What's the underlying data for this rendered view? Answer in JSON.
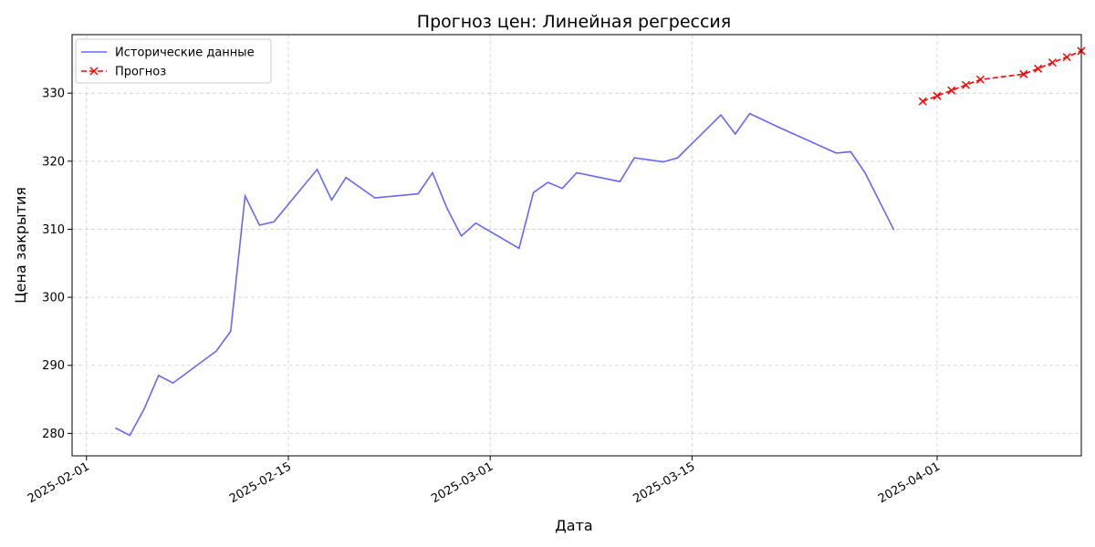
{
  "chart_data": {
    "type": "line",
    "title": "Прогноз цен: Линейная регрессия",
    "xlabel": "Дата",
    "ylabel": "Цена закрытия",
    "xlim": [
      "2025-01-31",
      "2025-04-11"
    ],
    "ylim": [
      276.7,
      338.6
    ],
    "x_ticks": [
      "2025-02-01",
      "2025-02-15",
      "2025-03-01",
      "2025-03-15",
      "2025-04-01"
    ],
    "y_ticks": [
      280,
      290,
      300,
      310,
      320,
      330
    ],
    "grid": true,
    "legend_position": "top-left",
    "series": [
      {
        "name": "Исторические данные",
        "color": "#6666ff",
        "style": "solid",
        "marker": "none",
        "points": [
          [
            "2025-02-03",
            280.8
          ],
          [
            "2025-02-04",
            279.7
          ],
          [
            "2025-02-05",
            283.6
          ],
          [
            "2025-02-06",
            288.5
          ],
          [
            "2025-02-07",
            287.4
          ],
          [
            "2025-02-10",
            292.1
          ],
          [
            "2025-02-11",
            295.0
          ],
          [
            "2025-02-12",
            314.9
          ],
          [
            "2025-02-13",
            310.6
          ],
          [
            "2025-02-14",
            311.1
          ],
          [
            "2025-02-17",
            318.8
          ],
          [
            "2025-02-18",
            314.3
          ],
          [
            "2025-02-19",
            317.6
          ],
          [
            "2025-02-21",
            314.6
          ],
          [
            "2025-02-24",
            315.2
          ],
          [
            "2025-02-25",
            318.3
          ],
          [
            "2025-02-26",
            313.1
          ],
          [
            "2025-02-27",
            309.0
          ],
          [
            "2025-02-28",
            310.9
          ],
          [
            "2025-03-03",
            307.2
          ],
          [
            "2025-03-04",
            315.4
          ],
          [
            "2025-03-05",
            316.9
          ],
          [
            "2025-03-06",
            316.0
          ],
          [
            "2025-03-07",
            318.3
          ],
          [
            "2025-03-10",
            317.0
          ],
          [
            "2025-03-11",
            320.5
          ],
          [
            "2025-03-13",
            319.9
          ],
          [
            "2025-03-14",
            320.5
          ],
          [
            "2025-03-17",
            326.8
          ],
          [
            "2025-03-18",
            324.0
          ],
          [
            "2025-03-19",
            327.0
          ],
          [
            "2025-03-20",
            326.0
          ],
          [
            "2025-03-21",
            325.0
          ],
          [
            "2025-03-25",
            321.2
          ],
          [
            "2025-03-26",
            321.4
          ],
          [
            "2025-03-27",
            318.3
          ],
          [
            "2025-03-29",
            309.9
          ]
        ]
      },
      {
        "name": "Прогноз",
        "color": "#ff0000",
        "style": "dashed",
        "marker": "x",
        "points": [
          [
            "2025-03-31",
            328.8
          ],
          [
            "2025-04-01",
            329.6
          ],
          [
            "2025-04-02",
            330.4
          ],
          [
            "2025-04-03",
            331.2
          ],
          [
            "2025-04-04",
            332.0
          ],
          [
            "2025-04-07",
            332.8
          ],
          [
            "2025-04-08",
            333.6
          ],
          [
            "2025-04-09",
            334.5
          ],
          [
            "2025-04-10",
            335.3
          ],
          [
            "2025-04-11",
            336.2
          ]
        ]
      }
    ]
  }
}
